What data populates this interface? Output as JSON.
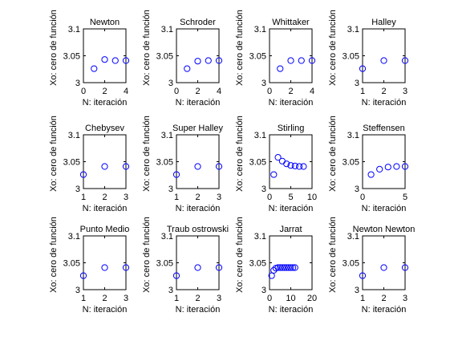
{
  "chart_data": [
    {
      "type": "scatter",
      "title": "Newton",
      "xlabel": "N: iteración",
      "ylabel": "Xo: cero de función",
      "xlim": [
        0,
        4
      ],
      "ylim": [
        3,
        3.1
      ],
      "xticks": [
        "0",
        "2",
        "4"
      ],
      "yticks": [
        "3",
        "3.05",
        "3.1"
      ],
      "x": [
        1,
        2,
        3,
        4
      ],
      "y": [
        3.026,
        3.043,
        3.041,
        3.041
      ]
    },
    {
      "type": "scatter",
      "title": "Schroder",
      "xlabel": "N: iteración",
      "ylabel": "Xo: cero de función",
      "xlim": [
        0,
        4
      ],
      "ylim": [
        3,
        3.1
      ],
      "xticks": [
        "0",
        "2",
        "4"
      ],
      "yticks": [
        "3",
        "3.05",
        "3.1"
      ],
      "x": [
        1,
        2,
        3,
        4
      ],
      "y": [
        3.026,
        3.04,
        3.041,
        3.041
      ]
    },
    {
      "type": "scatter",
      "title": "Whittaker",
      "xlabel": "N: iteración",
      "ylabel": "Xo: cero de función",
      "xlim": [
        0,
        4
      ],
      "ylim": [
        3,
        3.1
      ],
      "xticks": [
        "0",
        "2",
        "4"
      ],
      "yticks": [
        "3",
        "3.05",
        "3.1"
      ],
      "x": [
        1,
        2,
        3,
        4
      ],
      "y": [
        3.026,
        3.041,
        3.041,
        3.041
      ]
    },
    {
      "type": "scatter",
      "title": "Halley",
      "xlabel": "N: iteración",
      "ylabel": "Xo: cero de función",
      "xlim": [
        1,
        3
      ],
      "ylim": [
        3,
        3.1
      ],
      "xticks": [
        "1",
        "2",
        "3"
      ],
      "yticks": [
        "3",
        "3.05",
        "3.1"
      ],
      "x": [
        1,
        2,
        3
      ],
      "y": [
        3.026,
        3.041,
        3.041
      ]
    },
    {
      "type": "scatter",
      "title": "Chebysev",
      "xlabel": "N: iteración",
      "ylabel": "Xo: cero de función",
      "xlim": [
        1,
        3
      ],
      "ylim": [
        3,
        3.1
      ],
      "xticks": [
        "1",
        "2",
        "3"
      ],
      "yticks": [
        "3",
        "3.05",
        "3.1"
      ],
      "x": [
        1,
        2,
        3
      ],
      "y": [
        3.026,
        3.041,
        3.041
      ]
    },
    {
      "type": "scatter",
      "title": "Super Halley",
      "xlabel": "N: iteración",
      "ylabel": "Xo: cero de función",
      "xlim": [
        1,
        3
      ],
      "ylim": [
        3,
        3.1
      ],
      "xticks": [
        "1",
        "2",
        "3"
      ],
      "yticks": [
        "3",
        "3.05",
        "3.1"
      ],
      "x": [
        1,
        2,
        3
      ],
      "y": [
        3.026,
        3.041,
        3.041
      ]
    },
    {
      "type": "scatter",
      "title": "Stirling",
      "xlabel": "N: iteración",
      "ylabel": "Xo: cero de función",
      "xlim": [
        0,
        10
      ],
      "ylim": [
        3,
        3.1
      ],
      "xticks": [
        "0",
        "5",
        "10"
      ],
      "yticks": [
        "3",
        "3.05",
        "3.1"
      ],
      "x": [
        1,
        2,
        3,
        4,
        5,
        6,
        7,
        8
      ],
      "y": [
        3.026,
        3.058,
        3.051,
        3.046,
        3.043,
        3.042,
        3.041,
        3.041
      ]
    },
    {
      "type": "scatter",
      "title": "Steffensen",
      "xlabel": "N: iteración",
      "ylabel": "Xo: cero de función",
      "xlim": [
        0,
        5
      ],
      "ylim": [
        3,
        3.1
      ],
      "xticks": [
        "0",
        "5"
      ],
      "yticks": [
        "3",
        "3.05",
        "3.1"
      ],
      "x": [
        1,
        2,
        3,
        4,
        5
      ],
      "y": [
        3.026,
        3.036,
        3.04,
        3.041,
        3.041
      ]
    },
    {
      "type": "scatter",
      "title": "Punto Medio",
      "xlabel": "N: iteración",
      "ylabel": "Xo: cero de función",
      "xlim": [
        1,
        3
      ],
      "ylim": [
        3,
        3.1
      ],
      "xticks": [
        "1",
        "2",
        "3"
      ],
      "yticks": [
        "3",
        "3.05",
        "3.1"
      ],
      "x": [
        1,
        2,
        3
      ],
      "y": [
        3.026,
        3.041,
        3.041
      ]
    },
    {
      "type": "scatter",
      "title": "Traub ostrowski",
      "xlabel": "N: iteración",
      "ylabel": "Xo: cero de función",
      "xlim": [
        1,
        3
      ],
      "ylim": [
        3,
        3.1
      ],
      "xticks": [
        "1",
        "2",
        "3"
      ],
      "yticks": [
        "3",
        "3.05",
        "3.1"
      ],
      "x": [
        1,
        2,
        3
      ],
      "y": [
        3.026,
        3.041,
        3.041
      ]
    },
    {
      "type": "scatter",
      "title": "Jarrat",
      "xlabel": "N: iteración",
      "ylabel": "Xo: cero de función",
      "xlim": [
        0,
        20
      ],
      "ylim": [
        3,
        3.1
      ],
      "xticks": [
        "0",
        "10",
        "20"
      ],
      "yticks": [
        "3",
        "3.05",
        "3.1"
      ],
      "x": [
        1,
        2,
        3,
        4,
        5,
        6,
        7,
        8,
        9,
        10,
        11,
        12
      ],
      "y": [
        3.026,
        3.036,
        3.04,
        3.041,
        3.041,
        3.041,
        3.041,
        3.041,
        3.041,
        3.041,
        3.041,
        3.041
      ]
    },
    {
      "type": "scatter",
      "title": "Newton Newton",
      "xlabel": "N: iteración",
      "ylabel": "Xo: cero de función",
      "xlim": [
        1,
        3
      ],
      "ylim": [
        3,
        3.1
      ],
      "xticks": [
        "1",
        "2",
        "3"
      ],
      "yticks": [
        "3",
        "3.05",
        "3.1"
      ],
      "x": [
        1,
        2,
        3
      ],
      "y": [
        3.026,
        3.041,
        3.041
      ]
    }
  ],
  "colors": {
    "marker": "#0000ff",
    "axes": "#000000",
    "background": "#ffffff"
  }
}
